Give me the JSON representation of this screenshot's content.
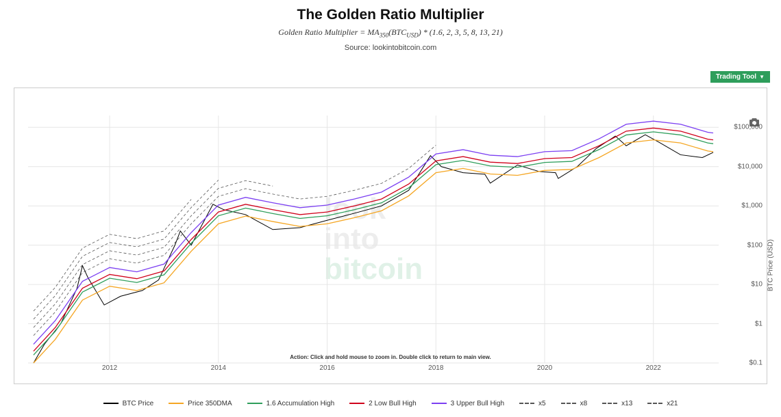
{
  "header": {
    "title": "The Golden Ratio Multiplier",
    "subtitle_prefix": "Golden Ratio Multiplier = MA",
    "subtitle_sub1": "350",
    "subtitle_mid": "(BTC",
    "subtitle_sub2": "USD",
    "subtitle_suffix": ") * (1.6, 2, 3, 5, 8, 13, 21)",
    "source": "Source: lookintobitcoin.com"
  },
  "toolbar": {
    "trading_label": "Trading Tool",
    "camera_title": "Download plot"
  },
  "watermark": {
    "line1": "look",
    "line2": "into",
    "line3": "bitcoin"
  },
  "action_hint": "Action: Click and hold mouse to zoom in.  Double click to return to main view.",
  "chart": {
    "type": "line-log",
    "background_color": "#ffffff",
    "grid_color": "#e6e6e6",
    "y_axis": {
      "label": "BTC Price (USD)",
      "scale": "log",
      "min": 0.1,
      "max": 200000,
      "ticks": [
        {
          "v": 0.1,
          "label": "$0.1"
        },
        {
          "v": 1,
          "label": "$1"
        },
        {
          "v": 10,
          "label": "$10"
        },
        {
          "v": 100,
          "label": "$100"
        },
        {
          "v": 1000,
          "label": "$1,000"
        },
        {
          "v": 10000,
          "label": "$10,000"
        },
        {
          "v": 100000,
          "label": "$100,000"
        }
      ]
    },
    "x_axis": {
      "min": 2010.5,
      "max": 2023.2,
      "ticks": [
        2012,
        2014,
        2016,
        2018,
        2020,
        2022
      ],
      "tick_labels": [
        "2012",
        "2014",
        "2016",
        "2018",
        "2020",
        "2022"
      ]
    },
    "series": [
      {
        "name": "BTC Price",
        "color": "#000000",
        "width": 1.0,
        "dash": "",
        "points": [
          [
            2010.6,
            0.1
          ],
          [
            2010.8,
            0.3
          ],
          [
            2011.1,
            1
          ],
          [
            2011.4,
            8
          ],
          [
            2011.5,
            30
          ],
          [
            2011.6,
            15
          ],
          [
            2011.9,
            3
          ],
          [
            2012.2,
            5
          ],
          [
            2012.6,
            7
          ],
          [
            2012.9,
            13
          ],
          [
            2013.2,
            100
          ],
          [
            2013.3,
            230
          ],
          [
            2013.5,
            100
          ],
          [
            2013.9,
            1100
          ],
          [
            2014.1,
            800
          ],
          [
            2014.5,
            600
          ],
          [
            2015.0,
            250
          ],
          [
            2015.5,
            280
          ],
          [
            2016.0,
            430
          ],
          [
            2016.5,
            650
          ],
          [
            2017.0,
            1000
          ],
          [
            2017.5,
            2500
          ],
          [
            2017.9,
            19000
          ],
          [
            2018.1,
            10000
          ],
          [
            2018.5,
            7000
          ],
          [
            2018.9,
            6400
          ],
          [
            2019.0,
            3800
          ],
          [
            2019.5,
            11000
          ],
          [
            2019.9,
            7500
          ],
          [
            2020.2,
            7000
          ],
          [
            2020.25,
            5000
          ],
          [
            2020.6,
            10000
          ],
          [
            2020.95,
            29000
          ],
          [
            2021.3,
            60000
          ],
          [
            2021.5,
            34000
          ],
          [
            2021.85,
            65000
          ],
          [
            2022.1,
            42000
          ],
          [
            2022.5,
            20000
          ],
          [
            2022.9,
            17000
          ],
          [
            2023.1,
            23000
          ]
        ]
      },
      {
        "name": "Price 350DMA",
        "color": "#f5a623",
        "width": 1.3,
        "dash": "",
        "points": [
          [
            2010.6,
            0.1
          ],
          [
            2011.0,
            0.4
          ],
          [
            2011.5,
            4
          ],
          [
            2012.0,
            9
          ],
          [
            2012.5,
            7
          ],
          [
            2013.0,
            11
          ],
          [
            2013.5,
            70
          ],
          [
            2014.0,
            350
          ],
          [
            2014.5,
            550
          ],
          [
            2015.0,
            400
          ],
          [
            2015.5,
            300
          ],
          [
            2016.0,
            350
          ],
          [
            2016.5,
            500
          ],
          [
            2017.0,
            750
          ],
          [
            2017.5,
            1800
          ],
          [
            2018.0,
            7000
          ],
          [
            2018.5,
            9000
          ],
          [
            2019.0,
            6500
          ],
          [
            2019.5,
            6000
          ],
          [
            2020.0,
            8000
          ],
          [
            2020.5,
            8500
          ],
          [
            2021.0,
            17000
          ],
          [
            2021.5,
            40000
          ],
          [
            2022.0,
            48000
          ],
          [
            2022.5,
            40000
          ],
          [
            2023.0,
            25000
          ],
          [
            2023.1,
            24000
          ]
        ]
      },
      {
        "name": "1.6 Accumulation High",
        "color": "#2e9e5b",
        "width": 1.3,
        "dash": "",
        "points": [
          [
            2010.6,
            0.16
          ],
          [
            2011.0,
            0.64
          ],
          [
            2011.5,
            6.4
          ],
          [
            2012.0,
            14.4
          ],
          [
            2012.5,
            11.2
          ],
          [
            2013.0,
            17.6
          ],
          [
            2013.5,
            112
          ],
          [
            2014.0,
            560
          ],
          [
            2014.5,
            880
          ],
          [
            2015.0,
            640
          ],
          [
            2015.5,
            480
          ],
          [
            2016.0,
            560
          ],
          [
            2016.5,
            800
          ],
          [
            2017.0,
            1200
          ],
          [
            2017.5,
            2880
          ],
          [
            2018.0,
            11200
          ],
          [
            2018.5,
            14400
          ],
          [
            2019.0,
            10400
          ],
          [
            2019.5,
            9600
          ],
          [
            2020.0,
            12800
          ],
          [
            2020.5,
            13600
          ],
          [
            2021.0,
            27200
          ],
          [
            2021.5,
            64000
          ],
          [
            2022.0,
            76800
          ],
          [
            2022.5,
            64000
          ],
          [
            2023.0,
            40000
          ],
          [
            2023.1,
            38400
          ]
        ]
      },
      {
        "name": "2 Low Bull High",
        "color": "#d0021b",
        "width": 1.3,
        "dash": "",
        "points": [
          [
            2010.6,
            0.2
          ],
          [
            2011.0,
            0.8
          ],
          [
            2011.5,
            8
          ],
          [
            2012.0,
            18
          ],
          [
            2012.5,
            14
          ],
          [
            2013.0,
            22
          ],
          [
            2013.5,
            140
          ],
          [
            2014.0,
            700
          ],
          [
            2014.5,
            1100
          ],
          [
            2015.0,
            800
          ],
          [
            2015.5,
            600
          ],
          [
            2016.0,
            700
          ],
          [
            2016.5,
            1000
          ],
          [
            2017.0,
            1500
          ],
          [
            2017.5,
            3600
          ],
          [
            2018.0,
            14000
          ],
          [
            2018.5,
            18000
          ],
          [
            2019.0,
            13000
          ],
          [
            2019.5,
            12000
          ],
          [
            2020.0,
            16000
          ],
          [
            2020.5,
            17000
          ],
          [
            2021.0,
            34000
          ],
          [
            2021.5,
            80000
          ],
          [
            2022.0,
            96000
          ],
          [
            2022.5,
            80000
          ],
          [
            2023.0,
            50000
          ],
          [
            2023.1,
            48000
          ]
        ]
      },
      {
        "name": "3 Upper Bull High",
        "color": "#7b3ff2",
        "width": 1.3,
        "dash": "",
        "points": [
          [
            2010.6,
            0.3
          ],
          [
            2011.0,
            1.2
          ],
          [
            2011.5,
            12
          ],
          [
            2012.0,
            27
          ],
          [
            2012.5,
            21
          ],
          [
            2013.0,
            33
          ],
          [
            2013.5,
            210
          ],
          [
            2014.0,
            1050
          ],
          [
            2014.5,
            1650
          ],
          [
            2015.0,
            1200
          ],
          [
            2015.5,
            900
          ],
          [
            2016.0,
            1050
          ],
          [
            2016.5,
            1500
          ],
          [
            2017.0,
            2250
          ],
          [
            2017.5,
            5400
          ],
          [
            2018.0,
            21000
          ],
          [
            2018.5,
            27000
          ],
          [
            2019.0,
            19500
          ],
          [
            2019.5,
            18000
          ],
          [
            2020.0,
            24000
          ],
          [
            2020.5,
            25500
          ],
          [
            2021.0,
            51000
          ],
          [
            2021.5,
            120000
          ],
          [
            2022.0,
            144000
          ],
          [
            2022.5,
            120000
          ],
          [
            2023.0,
            75000
          ],
          [
            2023.1,
            72000
          ]
        ]
      },
      {
        "name": "x5",
        "color": "#555555",
        "width": 0.8,
        "dash": "4,3",
        "points": [
          [
            2010.6,
            0.5
          ],
          [
            2011.0,
            2
          ],
          [
            2011.5,
            20
          ],
          [
            2012.0,
            45
          ],
          [
            2012.5,
            35
          ],
          [
            2013.0,
            55
          ],
          [
            2013.5,
            350
          ],
          [
            2014.0,
            1750
          ],
          [
            2014.5,
            2750
          ],
          [
            2015.0,
            2000
          ],
          [
            2015.5,
            1500
          ],
          [
            2016.0,
            1750
          ],
          [
            2016.5,
            2500
          ],
          [
            2017.0,
            3750
          ],
          [
            2017.5,
            9000
          ],
          [
            2018.0,
            35000
          ]
        ]
      },
      {
        "name": "x8",
        "color": "#555555",
        "width": 0.8,
        "dash": "4,3",
        "points": [
          [
            2010.6,
            0.8
          ],
          [
            2011.0,
            3.2
          ],
          [
            2011.5,
            32
          ],
          [
            2012.0,
            72
          ],
          [
            2012.5,
            56
          ],
          [
            2013.0,
            88
          ],
          [
            2013.5,
            560
          ],
          [
            2014.0,
            2800
          ],
          [
            2014.5,
            4400
          ],
          [
            2015.0,
            3200
          ]
        ]
      },
      {
        "name": "x13",
        "color": "#555555",
        "width": 0.8,
        "dash": "4,3",
        "points": [
          [
            2010.6,
            1.3
          ],
          [
            2011.0,
            5.2
          ],
          [
            2011.5,
            52
          ],
          [
            2012.0,
            117
          ],
          [
            2012.5,
            91
          ],
          [
            2013.0,
            143
          ],
          [
            2013.5,
            910
          ],
          [
            2014.0,
            4550
          ]
        ]
      },
      {
        "name": "x21",
        "color": "#555555",
        "width": 0.8,
        "dash": "4,3",
        "points": [
          [
            2010.6,
            2.1
          ],
          [
            2011.0,
            8.4
          ],
          [
            2011.5,
            84
          ],
          [
            2012.0,
            189
          ],
          [
            2012.5,
            147
          ],
          [
            2013.0,
            231
          ],
          [
            2013.5,
            1470
          ]
        ]
      }
    ]
  },
  "legend": [
    {
      "label": "BTC Price",
      "color": "#000000",
      "dash": false
    },
    {
      "label": "Price 350DMA",
      "color": "#f5a623",
      "dash": false
    },
    {
      "label": "1.6 Accumulation High",
      "color": "#2e9e5b",
      "dash": false
    },
    {
      "label": "2 Low Bull High",
      "color": "#d0021b",
      "dash": false
    },
    {
      "label": "3 Upper Bull High",
      "color": "#7b3ff2",
      "dash": false
    },
    {
      "label": "x5",
      "color": "#555555",
      "dash": true
    },
    {
      "label": "x8",
      "color": "#555555",
      "dash": true
    },
    {
      "label": "x13",
      "color": "#555555",
      "dash": true
    },
    {
      "label": "x21",
      "color": "#555555",
      "dash": true
    }
  ]
}
